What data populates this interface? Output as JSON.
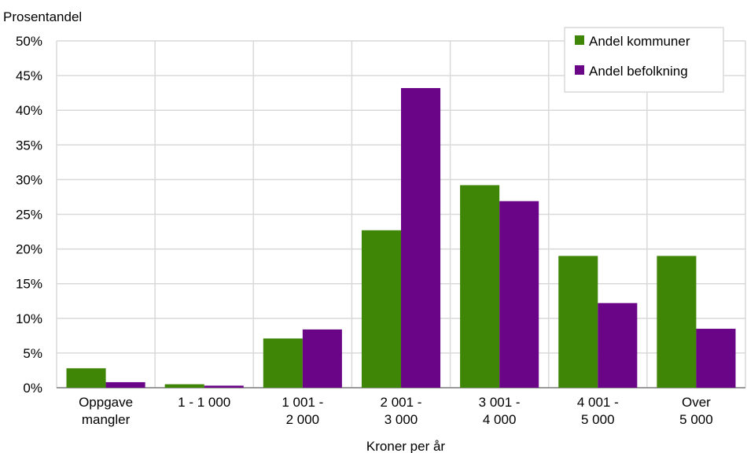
{
  "chart_data": {
    "type": "bar",
    "title": "",
    "ylabel": "Prosentandel",
    "xlabel": "Kroner per år",
    "categories": [
      [
        "Oppgave",
        "mangler"
      ],
      [
        "1 - 1 000"
      ],
      [
        "1 001 -",
        "2 000"
      ],
      [
        "2 001 -",
        "3 000"
      ],
      [
        "3 001 -",
        "4 000"
      ],
      [
        "4 001 -",
        "5 000"
      ],
      [
        "Over",
        "5 000"
      ]
    ],
    "series": [
      {
        "name": "Andel kommuner",
        "color": "#3f8506",
        "values": [
          2.8,
          0.5,
          7.1,
          22.7,
          29.2,
          19.0,
          19.0
        ]
      },
      {
        "name": "Andel befolkning",
        "color": "#6a0587",
        "values": [
          0.8,
          0.3,
          8.4,
          43.2,
          26.9,
          12.2,
          8.5
        ]
      }
    ],
    "ylim": [
      0,
      50
    ],
    "yticks": [
      "0%",
      "5%",
      "10%",
      "15%",
      "20%",
      "25%",
      "30%",
      "35%",
      "40%",
      "45%",
      "50%"
    ],
    "grid": true,
    "legend_position": "top-right"
  }
}
